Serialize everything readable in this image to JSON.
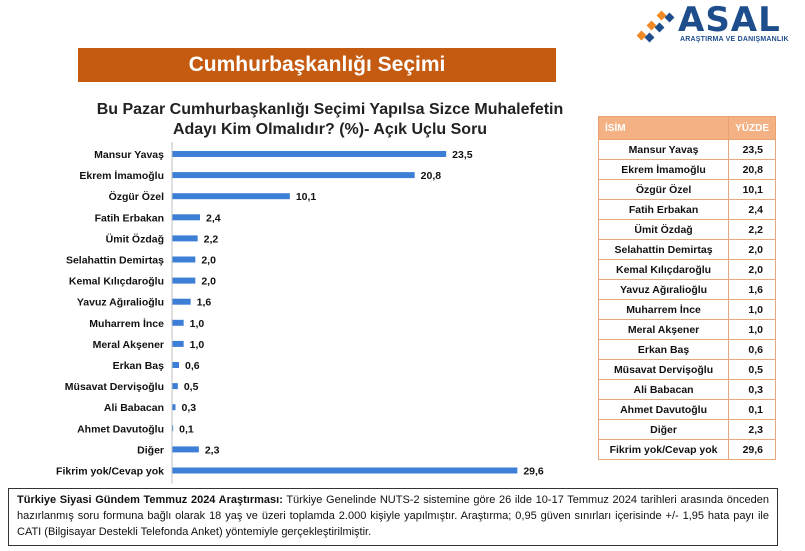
{
  "logo": {
    "name": "ASAL",
    "subtitle": "ARAŞTIRMA VE DANIŞMANLIK"
  },
  "banner": {
    "title": "Cumhurbaşkanlığı Seçimi"
  },
  "chart_title_lines": [
    "Bu Pazar Cumhurbaşkanlığı Seçimi Yapılsa Sizce Muhalefetin",
    "Adayı Kim Olmalıdır? (%)- Açık Uçlu Soru"
  ],
  "colors": {
    "bar": "#3d7fd6",
    "banner": "#c55a11",
    "table_header": "#f4b183",
    "table_border": "#e7a77e"
  },
  "chart_data": {
    "type": "bar",
    "orientation": "horizontal",
    "title": "Bu Pazar Cumhurbaşkanlığı Seçimi Yapılsa Sizce Muhalefetin Adayı Kim Olmalıdır? (%)- Açık Uçlu Soru",
    "categories": [
      "Mansur Yavaş",
      "Ekrem İmamoğlu",
      "Özgür Özel",
      "Fatih Erbakan",
      "Ümit Özdağ",
      "Selahattin Demirtaş",
      "Kemal Kılıçdaroğlu",
      "Yavuz Ağıralioğlu",
      "Muharrem İnce",
      "Meral Akşener",
      "Erkan Baş",
      "Müsavat Dervişoğlu",
      "Ali Babacan",
      "Ahmet Davutoğlu",
      "Diğer",
      "Fikrim yok/Cevap yok"
    ],
    "values": [
      23.5,
      20.8,
      10.1,
      2.4,
      2.2,
      2.0,
      2.0,
      1.6,
      1.0,
      1.0,
      0.6,
      0.5,
      0.3,
      0.1,
      2.3,
      29.6
    ],
    "value_labels": [
      "23,5",
      "20,8",
      "10,1",
      "2,4",
      "2,2",
      "2,0",
      "2,0",
      "1,6",
      "1,0",
      "1,0",
      "0,6",
      "0,5",
      "0,3",
      "0,1",
      "2,3",
      "29,6"
    ],
    "xlim": [
      0,
      30
    ],
    "grid": false,
    "legend": "none"
  },
  "table": {
    "headers": {
      "name": "İSİM",
      "value": "YÜZDE"
    },
    "rows": [
      {
        "name": "Mansur Yavaş",
        "value": "23,5"
      },
      {
        "name": "Ekrem İmamoğlu",
        "value": "20,8"
      },
      {
        "name": "Özgür Özel",
        "value": "10,1"
      },
      {
        "name": "Fatih Erbakan",
        "value": "2,4"
      },
      {
        "name": "Ümit Özdağ",
        "value": "2,2"
      },
      {
        "name": "Selahattin Demirtaş",
        "value": "2,0"
      },
      {
        "name": "Kemal Kılıçdaroğlu",
        "value": "2,0"
      },
      {
        "name": "Yavuz Ağıralioğlu",
        "value": "1,6"
      },
      {
        "name": "Muharrem İnce",
        "value": "1,0"
      },
      {
        "name": "Meral Akşener",
        "value": "1,0"
      },
      {
        "name": "Erkan Baş",
        "value": "0,6"
      },
      {
        "name": "Müsavat Dervişoğlu",
        "value": "0,5"
      },
      {
        "name": "Ali Babacan",
        "value": "0,3"
      },
      {
        "name": "Ahmet Davutoğlu",
        "value": "0,1"
      },
      {
        "name": "Diğer",
        "value": "2,3"
      },
      {
        "name": "Fikrim yok/Cevap yok",
        "value": "29,6"
      }
    ]
  },
  "footnote": {
    "bold": "Türkiye Siyasi Gündem Temmuz 2024 Araştırması:",
    "text": " Türkiye Genelinde NUTS-2 sistemine göre 26 ilde 10-17 Temmuz 2024 tarihleri arasında önceden hazırlanmış soru formuna bağlı olarak 18 yaş ve üzeri toplamda 2.000 kişiyle yapılmıştır. Araştırma; 0,95 güven sınırları içerisinde +/- 1,95 hata payı ile CATI (Bilgisayar Destekli Telefonda Anket) yöntemiyle gerçekleştirilmiştir."
  }
}
